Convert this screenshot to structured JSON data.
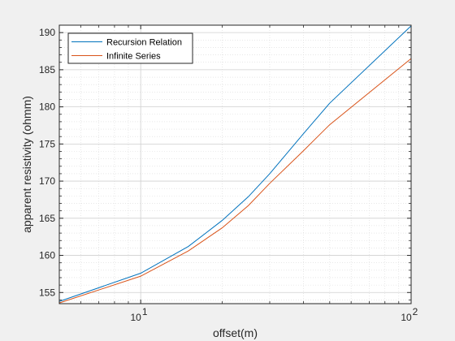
{
  "chart_data": {
    "type": "line",
    "xlabel": "offset(m)",
    "ylabel": "apparent resistivity (ohmm)",
    "xscale": "log",
    "xlim": [
      5,
      100
    ],
    "ylim": [
      153.5,
      191
    ],
    "x_ticks": [
      {
        "value": 10,
        "base": "10",
        "exp": "1"
      },
      {
        "value": 100,
        "base": "10",
        "exp": "2"
      }
    ],
    "y_ticks": [
      155,
      160,
      165,
      170,
      175,
      180,
      185,
      190
    ],
    "grid": "on",
    "minor_grid": "on",
    "legend_position": "top-left",
    "series": [
      {
        "name": "Recursion Relation",
        "color": "#0072bd",
        "x": [
          5,
          10,
          15,
          20,
          25,
          30,
          40,
          50,
          100
        ],
        "y": [
          153.8,
          157.6,
          161.2,
          164.7,
          167.9,
          171.0,
          176.4,
          180.5,
          190.9
        ]
      },
      {
        "name": "Infinite Series",
        "color": "#d95319",
        "x": [
          5,
          10,
          15,
          20,
          25,
          30,
          40,
          50,
          100
        ],
        "y": [
          153.6,
          157.2,
          160.6,
          163.7,
          166.7,
          169.7,
          174.1,
          177.6,
          186.5
        ]
      }
    ]
  }
}
